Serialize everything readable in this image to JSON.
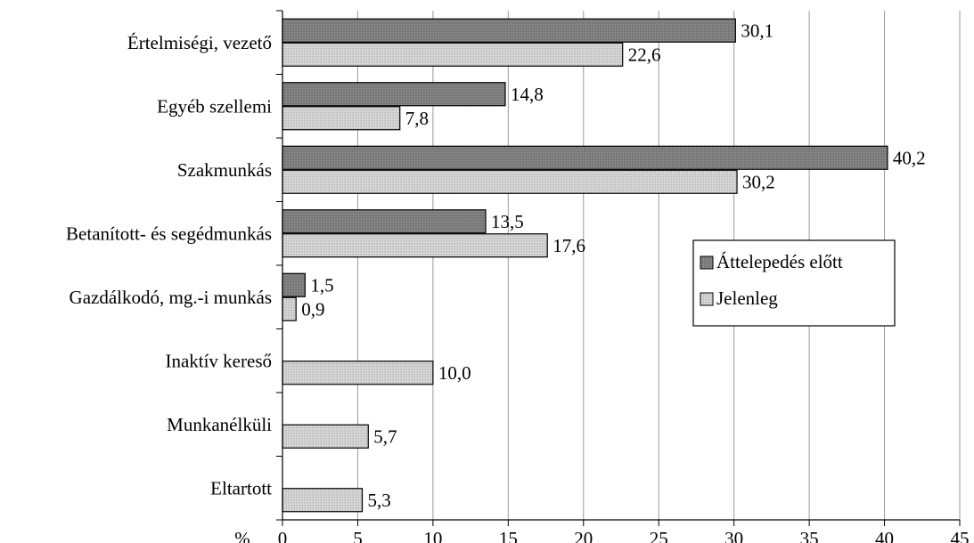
{
  "chart_data": {
    "type": "bar",
    "orientation": "horizontal",
    "categories": [
      "Értelmiségi, vezető",
      "Egyéb szellemi",
      "Szakmunkás",
      "Betanított- és segédmunkás",
      "Gazdálkodó, mg.-i munkás",
      "Inaktív kereső",
      "Munkanélküli",
      "Eltartott"
    ],
    "series": [
      {
        "name": "Áttelepedés előtt",
        "color": "#808080",
        "values": [
          30.1,
          14.8,
          40.2,
          13.5,
          1.5,
          null,
          null,
          null
        ],
        "labels": [
          "30,1",
          "14,8",
          "40,2",
          "13,5",
          "1,5",
          "",
          "",
          ""
        ]
      },
      {
        "name": "Jelenleg",
        "color": "#d0d0d0",
        "values": [
          22.6,
          7.8,
          30.2,
          17.6,
          0.9,
          10.0,
          5.7,
          5.3
        ],
        "labels": [
          "22,6",
          "7,8",
          "30,2",
          "17,6",
          "0,9",
          "10,0",
          "5,7",
          "5,3"
        ]
      }
    ],
    "xlabel": "%",
    "xlim": [
      0,
      45
    ],
    "xticks": [
      "0",
      "5",
      "10",
      "15",
      "20",
      "25",
      "30",
      "35",
      "40",
      "45"
    ],
    "grid": "vertical",
    "legend_position": "center-right"
  }
}
